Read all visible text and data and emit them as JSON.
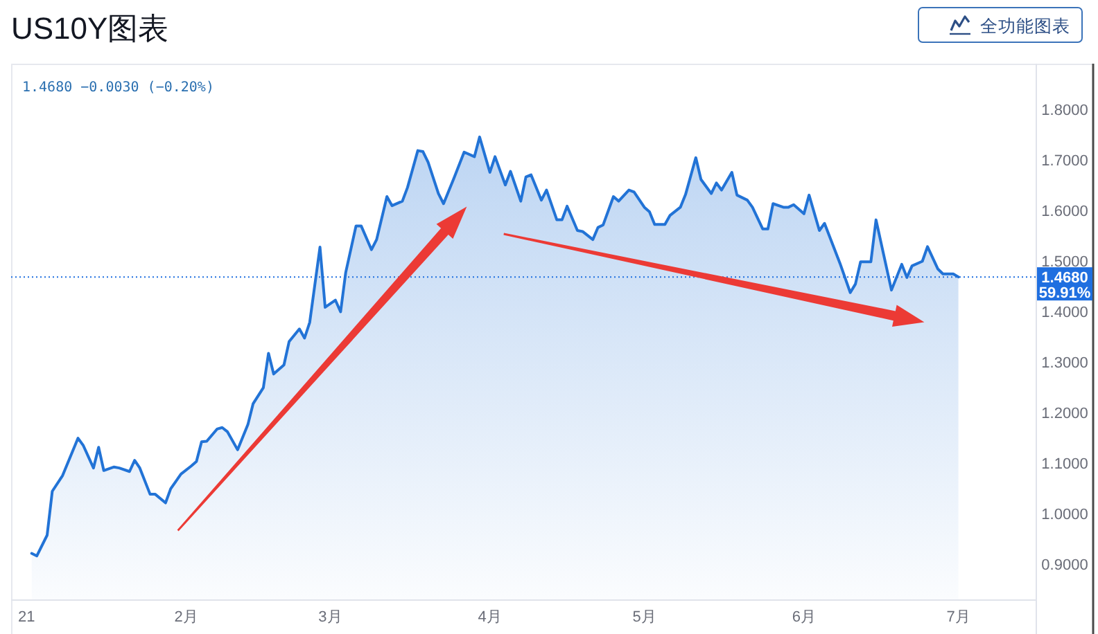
{
  "chart_data": {
    "type": "area",
    "title": "US10Y图表",
    "annotations": [
      "1.4680 −0.0030 (−0.20%)",
      "全功能图表"
    ],
    "x": [
      "2021-01-02",
      "2021-01-03",
      "2021-01-05",
      "2021-01-06",
      "2021-01-08",
      "2021-01-11",
      "2021-01-12",
      "2021-01-14",
      "2021-01-15",
      "2021-01-16",
      "2021-01-18",
      "2021-01-19",
      "2021-01-21",
      "2021-01-22",
      "2021-01-23",
      "2021-01-25",
      "2021-01-26",
      "2021-01-28",
      "2021-01-29",
      "2021-01-31",
      "2021-02-02",
      "2021-02-03",
      "2021-02-04",
      "2021-02-05",
      "2021-02-07",
      "2021-02-08",
      "2021-02-09",
      "2021-02-11",
      "2021-02-13",
      "2021-02-14",
      "2021-02-16",
      "2021-02-17",
      "2021-02-18",
      "2021-02-20",
      "2021-02-21",
      "2021-02-23",
      "2021-02-24",
      "2021-02-25",
      "2021-02-27",
      "2021-02-28",
      "2021-03-02",
      "2021-03-03",
      "2021-03-04",
      "2021-03-06",
      "2021-03-07",
      "2021-03-09",
      "2021-03-10",
      "2021-03-12",
      "2021-03-13",
      "2021-03-15",
      "2021-03-16",
      "2021-03-18",
      "2021-03-19",
      "2021-03-20",
      "2021-03-22",
      "2021-03-23",
      "2021-03-25",
      "2021-03-27",
      "2021-03-29",
      "2021-03-30",
      "2021-04-01",
      "2021-04-02",
      "2021-04-04",
      "2021-04-05",
      "2021-04-07",
      "2021-04-08",
      "2021-04-09",
      "2021-04-11",
      "2021-04-12",
      "2021-04-14",
      "2021-04-15",
      "2021-04-16",
      "2021-04-18",
      "2021-04-19",
      "2021-04-21",
      "2021-04-22",
      "2021-04-23",
      "2021-04-25",
      "2021-04-26",
      "2021-04-28",
      "2021-04-29",
      "2021-05-01",
      "2021-05-02",
      "2021-05-03",
      "2021-05-05",
      "2021-05-06",
      "2021-05-08",
      "2021-05-09",
      "2021-05-11",
      "2021-05-12",
      "2021-05-14",
      "2021-05-15",
      "2021-05-16",
      "2021-05-18",
      "2021-05-19",
      "2021-05-21",
      "2021-05-22",
      "2021-05-24",
      "2021-05-25",
      "2021-05-26",
      "2021-05-28",
      "2021-05-29",
      "2021-05-30",
      "2021-06-01",
      "2021-06-02",
      "2021-06-04",
      "2021-06-05",
      "2021-06-08",
      "2021-06-10",
      "2021-06-11",
      "2021-06-12",
      "2021-06-14",
      "2021-06-15",
      "2021-06-18",
      "2021-06-20",
      "2021-06-21",
      "2021-06-22",
      "2021-06-24",
      "2021-06-25",
      "2021-06-27",
      "2021-06-28",
      "2021-06-30",
      "2021-07-01"
    ],
    "series": [
      {
        "color": "#2273d6",
        "values": [
          0.921,
          0.916,
          0.957,
          1.044,
          1.075,
          1.149,
          1.135,
          1.09,
          1.131,
          1.085,
          1.092,
          1.09,
          1.083,
          1.105,
          1.09,
          1.038,
          1.038,
          1.021,
          1.049,
          1.078,
          1.094,
          1.103,
          1.142,
          1.143,
          1.167,
          1.17,
          1.162,
          1.126,
          1.176,
          1.217,
          1.249,
          1.317,
          1.276,
          1.294,
          1.34,
          1.365,
          1.347,
          1.378,
          1.527,
          1.408,
          1.422,
          1.399,
          1.477,
          1.569,
          1.569,
          1.522,
          1.542,
          1.627,
          1.609,
          1.618,
          1.645,
          1.718,
          1.716,
          1.695,
          1.633,
          1.613,
          1.663,
          1.715,
          1.706,
          1.745,
          1.675,
          1.706,
          1.65,
          1.677,
          1.618,
          1.666,
          1.67,
          1.62,
          1.64,
          1.581,
          1.581,
          1.608,
          1.56,
          1.558,
          1.542,
          1.566,
          1.571,
          1.627,
          1.618,
          1.64,
          1.636,
          1.606,
          1.597,
          1.572,
          1.572,
          1.59,
          1.606,
          1.631,
          1.704,
          1.661,
          1.633,
          1.654,
          1.64,
          1.675,
          1.63,
          1.62,
          1.606,
          1.563,
          1.563,
          1.613,
          1.606,
          1.606,
          1.611,
          1.593,
          1.63,
          1.56,
          1.574,
          1.495,
          1.437,
          1.454,
          1.498,
          1.498,
          1.581,
          1.442,
          1.493,
          1.467,
          1.49,
          1.499,
          1.528,
          1.484,
          1.474,
          1.474,
          1.468
        ]
      }
    ],
    "xlim": [
      "2020-12-29",
      "2021-07-16"
    ],
    "xticks": [
      {
        "value": "2021-01-01",
        "label": "21"
      },
      {
        "value": "2021-02-01",
        "label": "2月"
      },
      {
        "value": "2021-03-01",
        "label": "3月"
      },
      {
        "value": "2021-04-01",
        "label": "4月"
      },
      {
        "value": "2021-05-01",
        "label": "5月"
      },
      {
        "value": "2021-06-01",
        "label": "6月"
      },
      {
        "value": "2021-07-01",
        "label": "7月"
      }
    ],
    "ylim": [
      0.83,
      1.89
    ],
    "yticks": [
      {
        "value": 0.9,
        "label": "0.9000"
      },
      {
        "value": 1.0,
        "label": "1.0000"
      },
      {
        "value": 1.1,
        "label": "1.1000"
      },
      {
        "value": 1.2,
        "label": "1.2000"
      },
      {
        "value": 1.3,
        "label": "1.3000"
      },
      {
        "value": 1.4,
        "label": "1.4000"
      },
      {
        "value": 1.5,
        "label": "1.5000"
      },
      {
        "value": 1.6,
        "label": "1.6000"
      },
      {
        "value": 1.7,
        "label": "1.7000"
      },
      {
        "value": 1.8,
        "label": "1.8000"
      }
    ],
    "ref_lines": [
      {
        "axis": "y",
        "value": 1.468,
        "label": "1.4680\n59.91%",
        "color": "#1f6fe0",
        "line_style": "dotted"
      }
    ],
    "line_style": "solid"
  }
}
